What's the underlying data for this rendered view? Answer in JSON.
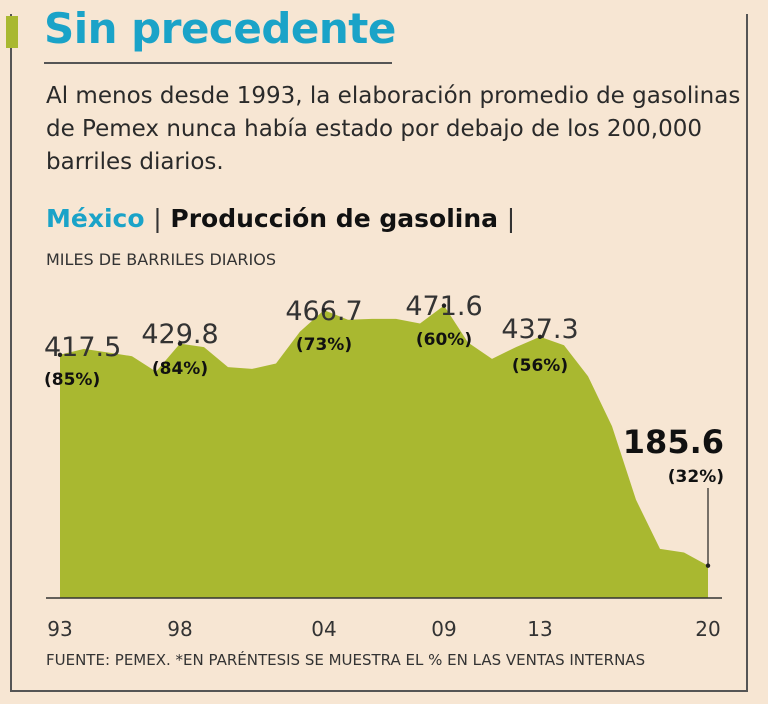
{
  "header": {
    "title": "Sin precedente",
    "intro": "Al menos desde 1993, la elaboración promedio de gasolinas de Pemex nunca había estado por debajo de los 200,000 barriles diarios.",
    "chart_country": "México",
    "chart_separator": "|",
    "chart_title": "Producción de gasolina",
    "unit_label": "MILES DE BARRILES DIARIOS"
  },
  "footer": {
    "source": "FUENTE: PEMEX. *EN PARÉNTESIS SE MUESTRA EL % EN LAS VENTAS INTERNAS"
  },
  "colors": {
    "area_fill": "#a9b830",
    "accent": "#1aa3c8",
    "background": "#f7e6d3"
  },
  "chart_data": {
    "type": "area",
    "title": "Producción de gasolina",
    "ylabel": "MILES DE BARRILES DIARIOS",
    "x": [
      1993,
      1994,
      1995,
      1996,
      1997,
      1998,
      1999,
      2000,
      2001,
      2002,
      2003,
      2004,
      2005,
      2006,
      2007,
      2008,
      2009,
      2010,
      2011,
      2012,
      2013,
      2014,
      2015,
      2016,
      2017,
      2018,
      2019,
      2020
    ],
    "values": [
      417.5,
      424,
      420,
      416,
      399,
      429.8,
      426,
      404,
      402,
      408,
      443,
      466.7,
      456,
      457,
      457,
      452,
      471.6,
      431,
      413,
      426,
      437.3,
      428,
      394,
      339,
      258,
      204,
      200,
      185.6
    ],
    "xtick_labels": [
      {
        "x": 1993,
        "label": "93"
      },
      {
        "x": 1998,
        "label": "98"
      },
      {
        "x": 2004,
        "label": "04"
      },
      {
        "x": 2009,
        "label": "09"
      },
      {
        "x": 2013,
        "label": "13"
      },
      {
        "x": 2020,
        "label": "20"
      }
    ],
    "annotations": [
      {
        "x": 1993,
        "value": "417.5",
        "pct": "(85%)"
      },
      {
        "x": 1998,
        "value": "429.8",
        "pct": "(84%)"
      },
      {
        "x": 2004,
        "value": "466.7",
        "pct": "(73%)"
      },
      {
        "x": 2009,
        "value": "471.6",
        "pct": "(60%)"
      },
      {
        "x": 2013,
        "value": "437.3",
        "pct": "(56%)"
      },
      {
        "x": 2020,
        "value": "185.6",
        "pct": "(32%)",
        "highlight": true
      }
    ],
    "xlim": [
      1993,
      2020
    ],
    "ylim": [
      150,
      480
    ],
    "grid": false,
    "legend": "none"
  }
}
